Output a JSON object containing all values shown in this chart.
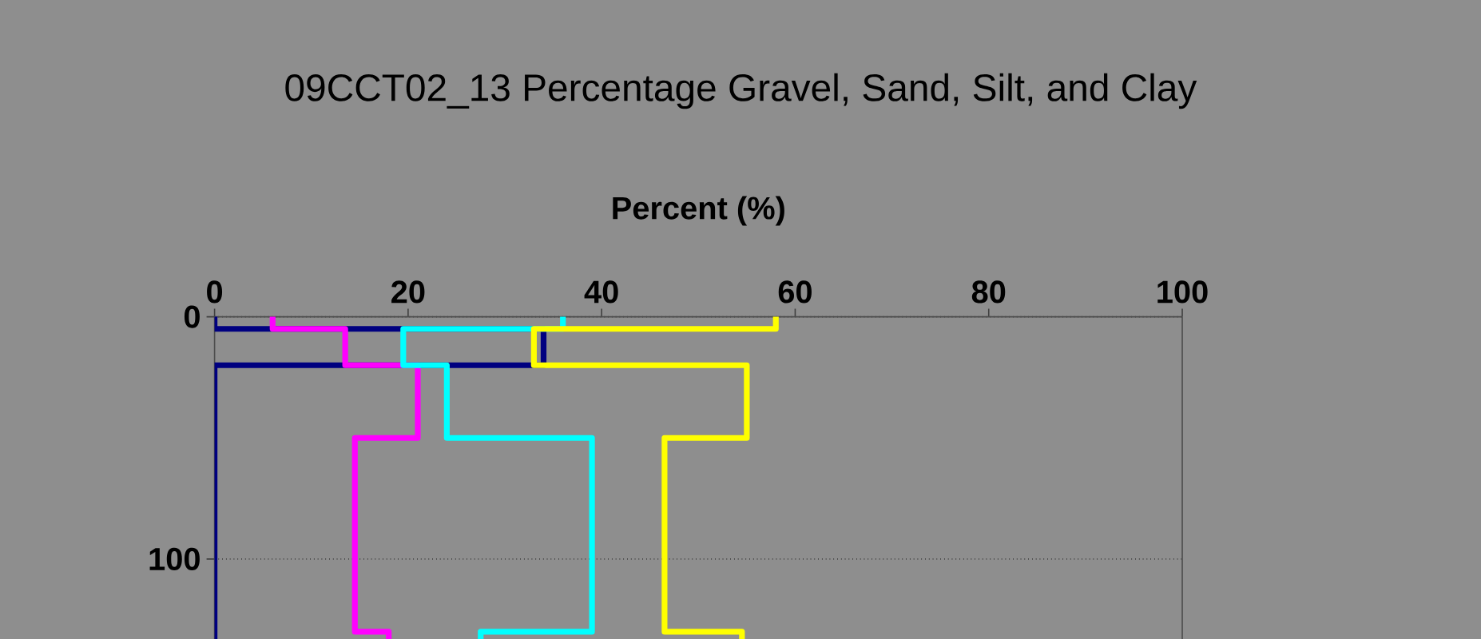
{
  "chart_data": {
    "type": "line",
    "title": "09CCT02_13 Percentage Gravel, Sand, Silt, and Clay",
    "xlabel": "Percent (%)",
    "xlim": [
      0,
      100
    ],
    "xticks": [
      0,
      20,
      40,
      60,
      80,
      100
    ],
    "ylim": [
      133,
      0
    ],
    "yticks": [
      0,
      100
    ],
    "grid": "y",
    "series": [
      {
        "color": "#000080",
        "x": [
          0,
          0,
          34,
          34,
          0,
          0
        ],
        "values": [
          0,
          5,
          5,
          20,
          20,
          133
        ]
      },
      {
        "color": "#ff00ff",
        "x": [
          6,
          6,
          13.5,
          13.5,
          21,
          21,
          14.5,
          14.5,
          18,
          18
        ],
        "values": [
          0,
          5,
          5,
          20,
          20,
          50,
          50,
          130,
          130,
          133
        ]
      },
      {
        "color": "#00ffff",
        "x": [
          36,
          36,
          19.5,
          19.5,
          24,
          24,
          39,
          39,
          27.5,
          27.5
        ],
        "values": [
          0,
          5,
          5,
          20,
          20,
          50,
          50,
          130,
          130,
          133
        ]
      },
      {
        "color": "#ffff00",
        "x": [
          58,
          58,
          33,
          33,
          55,
          55,
          46.5,
          46.5,
          54.5,
          54.5
        ],
        "values": [
          0,
          5,
          5,
          20,
          20,
          50,
          50,
          130,
          130,
          133
        ]
      }
    ]
  }
}
